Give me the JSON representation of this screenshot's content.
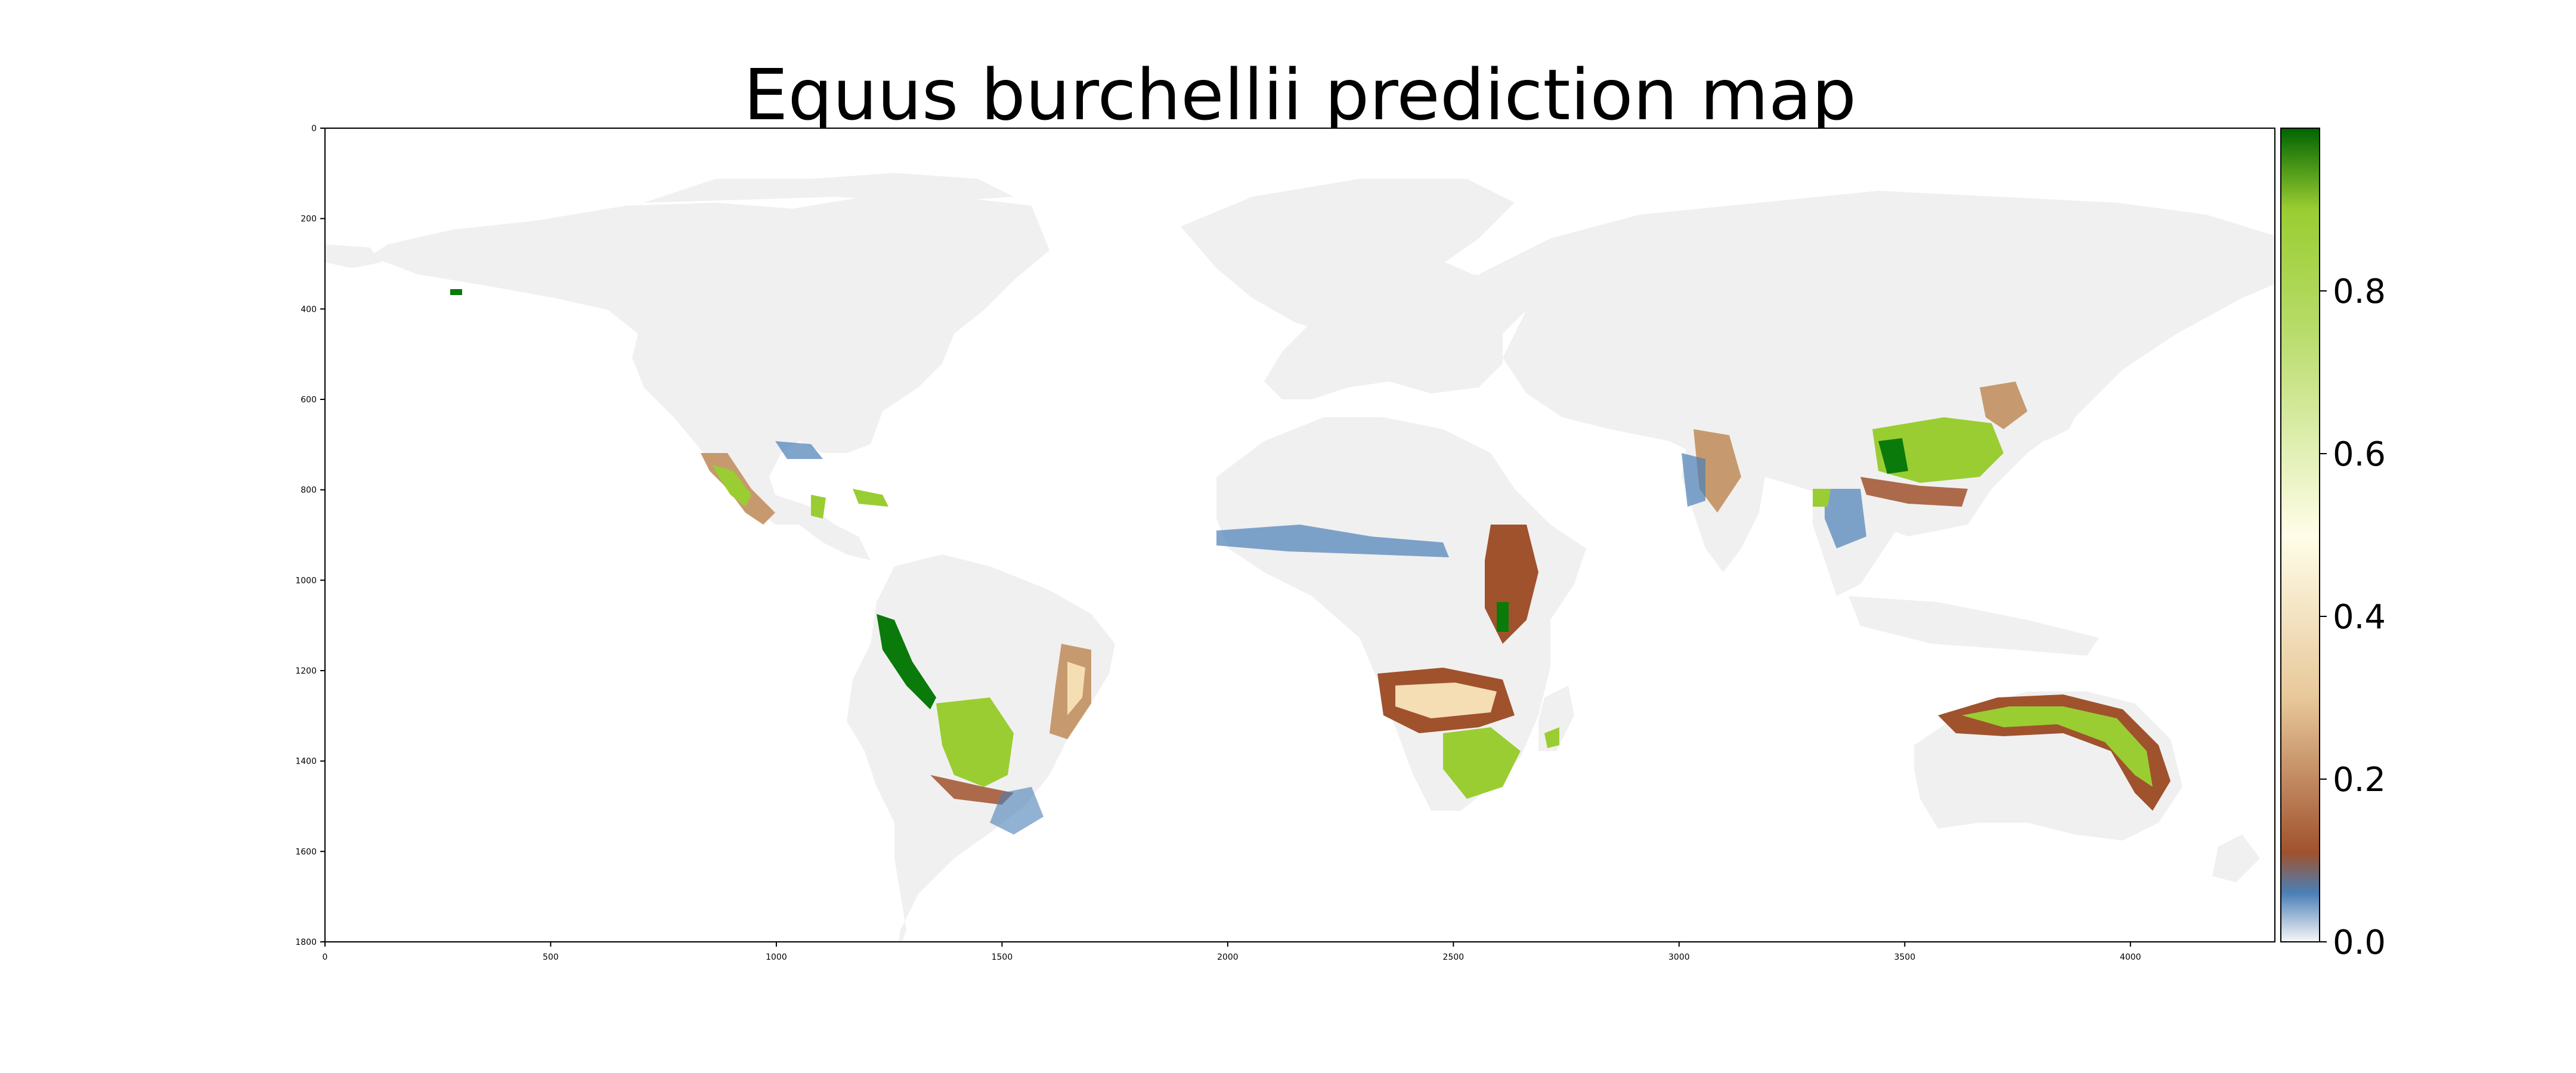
{
  "title": "Equus burchellii prediction map",
  "map": {
    "x_ticks": [
      "0",
      "500",
      "1000",
      "1500",
      "2000",
      "2500",
      "3000",
      "3500",
      "4000"
    ],
    "y_ticks": [
      "0",
      "200",
      "400",
      "600",
      "800",
      "1000",
      "1200",
      "1400",
      "1600",
      "1800"
    ],
    "xlim": [
      0,
      4320
    ],
    "ylim": [
      1800,
      0
    ]
  },
  "colorbar": {
    "range": [
      0.0,
      1.0
    ],
    "tick_labels": [
      "0.0",
      "0.2",
      "0.4",
      "0.6",
      "0.8"
    ],
    "tick_values": [
      0.0,
      0.2,
      0.4,
      0.6,
      0.8
    ],
    "colors": [
      "#f7f7f7",
      "#4a7fb7",
      "#a0522d",
      "#f5deb3",
      "#fffde8",
      "#9acd32",
      "#006400"
    ]
  },
  "colors": {
    "land": "#f0f0f0",
    "ocean": "#ffffff",
    "low": "#4a7fb7",
    "mid_low": "#a0522d",
    "mid": "#f5deb3",
    "high": "#9acd32",
    "very_high": "#0a7a0a"
  }
}
